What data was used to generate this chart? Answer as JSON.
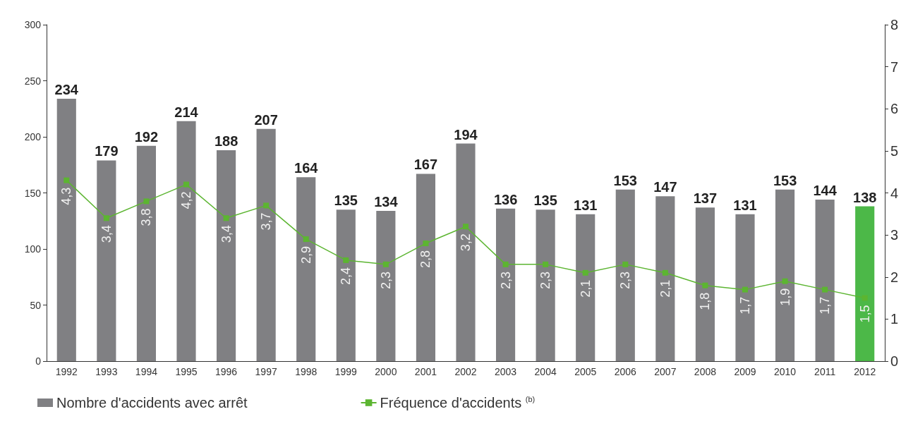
{
  "chart_data": {
    "type": "bar",
    "categories": [
      "1992",
      "1993",
      "1994",
      "1995",
      "1996",
      "1997",
      "1998",
      "1999",
      "2000",
      "2001",
      "2002",
      "2003",
      "2004",
      "2005",
      "2006",
      "2007",
      "2008",
      "2009",
      "2010",
      "2011",
      "2012"
    ],
    "series": [
      {
        "name": "Nombre d'accidents avec arrêt",
        "color": "#808083",
        "colors": [
          "#808083",
          "#808083",
          "#808083",
          "#808083",
          "#808083",
          "#808083",
          "#808083",
          "#808083",
          "#808083",
          "#808083",
          "#808083",
          "#808083",
          "#808083",
          "#808083",
          "#808083",
          "#808083",
          "#808083",
          "#808083",
          "#808083",
          "#808083",
          "#4cb848"
        ],
        "values": [
          234,
          179,
          192,
          214,
          188,
          207,
          164,
          135,
          134,
          167,
          194,
          136,
          135,
          131,
          153,
          147,
          137,
          131,
          153,
          144,
          138
        ]
      },
      {
        "type": "line",
        "axis": "y2",
        "name": "Fréquence d'accidents $^{(b)}$",
        "color": "#5cb531",
        "marker": "square",
        "values": [
          4.3,
          3.4,
          3.8,
          4.2,
          3.4,
          3.7,
          2.9,
          2.4,
          2.3,
          2.8,
          3.2,
          2.3,
          2.3,
          2.1,
          2.3,
          2.1,
          1.8,
          1.7,
          1.9,
          1.7,
          1.5
        ],
        "value_labels": [
          "4,3",
          "3,4",
          "3,8",
          "4,2",
          "3,4",
          "3,7",
          "2,9",
          "2,4",
          "2,3",
          "2,8",
          "3,2",
          "2,3",
          "2,3",
          "2,1",
          "2,3",
          "2,1",
          "1,8",
          "1,7",
          "1,9",
          "1,7",
          "1,5"
        ]
      }
    ],
    "data_labels": true,
    "ylim": [
      0,
      300
    ],
    "yticks": [
      0,
      50,
      100,
      150,
      200,
      250,
      300
    ],
    "y2lim": [
      0,
      8
    ],
    "y2ticks": [
      0,
      1,
      2,
      3,
      4,
      5,
      6,
      7,
      8
    ],
    "grid": false,
    "legend": "bottom"
  }
}
